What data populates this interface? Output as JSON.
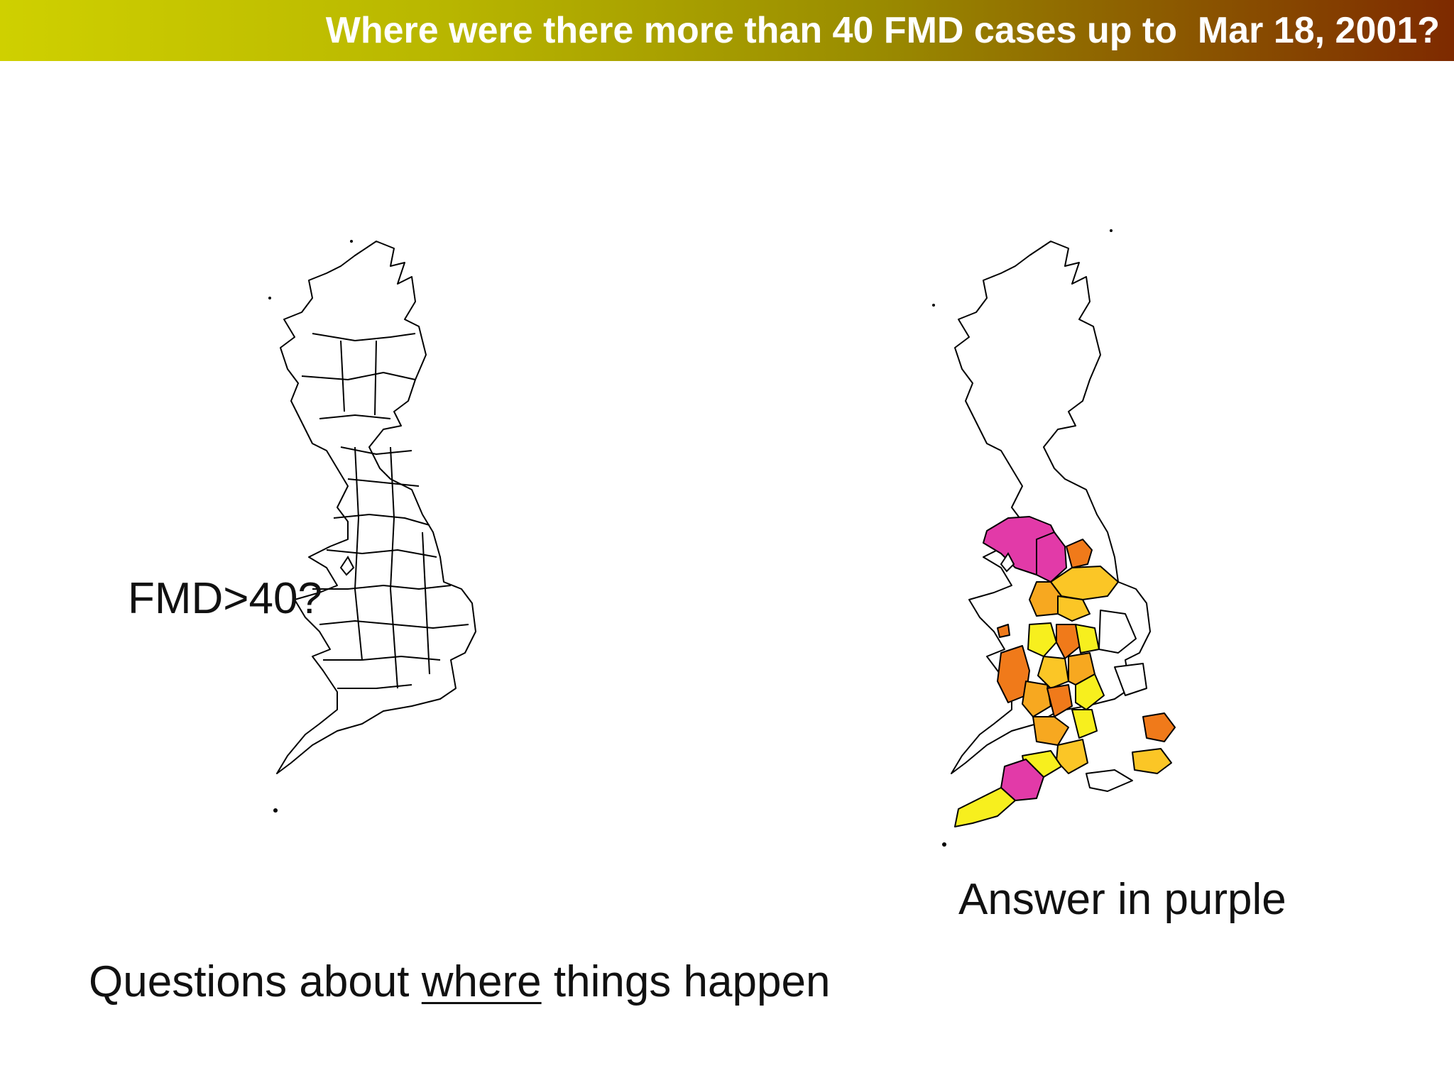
{
  "title": "Where were there more than 40 FMD cases up to  Mar 18, 2001?",
  "question_label": "FMD>40?",
  "answer_label": "Answer in purple",
  "footer": {
    "before": "Questions about ",
    "underlined": "where",
    "after": " things happen"
  },
  "colors": {
    "title_gradient_start": "#cfd000",
    "title_gradient_end": "#7e2a00",
    "purple": "#e23aa8",
    "dark_orange": "#f07a1a",
    "orange": "#f7a820",
    "light_orange": "#fbc626",
    "yellow": "#f7ef1e",
    "outline": "#000000"
  },
  "legend_note": "purple = more than 40 FMD cases"
}
